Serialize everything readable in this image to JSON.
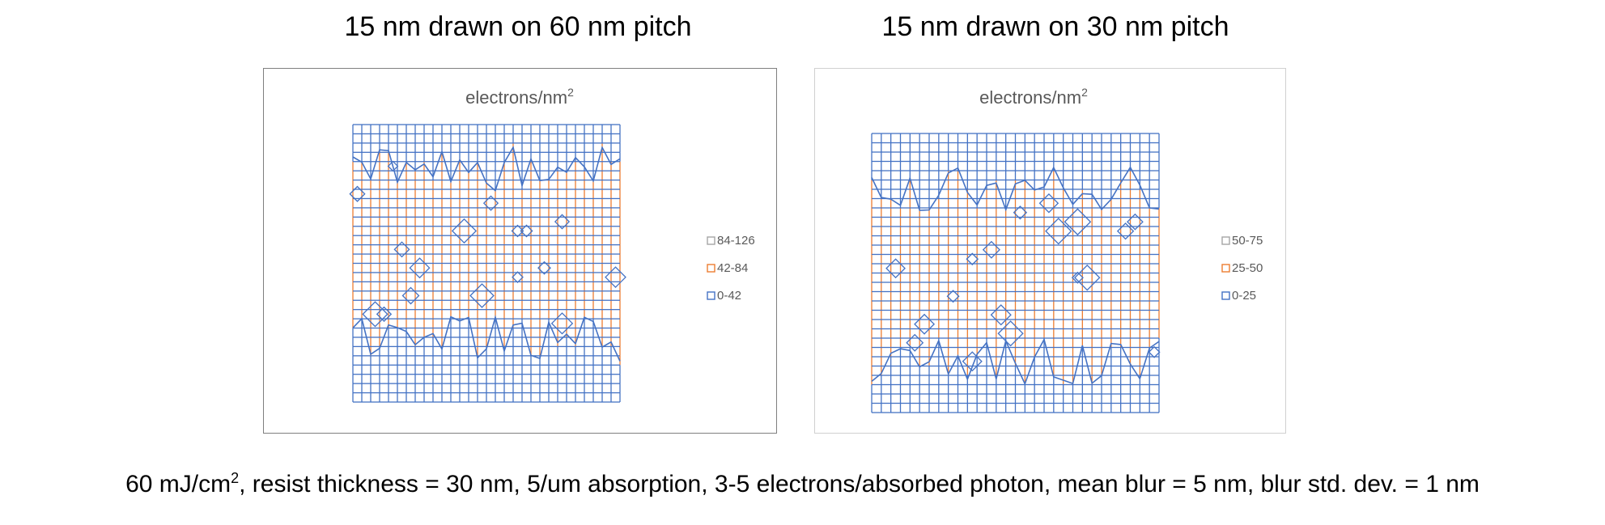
{
  "headings": {
    "left": "15 nm drawn on 60 nm pitch",
    "right": "15 nm drawn on 30 nm pitch"
  },
  "caption": {
    "pre": "60 mJ/cm",
    "sup": "2",
    "post": ", resist thickness = 30 nm, 5/um absorption, 3-5 electrons/absorbed photon, mean blur = 5 nm, blur std. dev. = 1 nm"
  },
  "colors": {
    "low": "#4472c4",
    "mid": "#ed7d31",
    "high": "#a5a5a5",
    "title": "#595959"
  },
  "chart_data": [
    {
      "type": "heatmap",
      "subtype": "contour-surface",
      "title": "electrons/nm",
      "title_sup": "2",
      "legend_position": "right",
      "bands": [
        {
          "label": "84-126",
          "range": [
            84,
            126
          ],
          "color": "#a5a5a5"
        },
        {
          "label": "42-84",
          "range": [
            42,
            84
          ],
          "color": "#ed7d31"
        },
        {
          "label": "0-42",
          "range": [
            0,
            42
          ],
          "color": "#4472c4"
        }
      ],
      "grid_cells": 30,
      "mid_band_extent": [
        0.16,
        0.77
      ],
      "seed": 11
    },
    {
      "type": "heatmap",
      "subtype": "contour-surface",
      "title": "electrons/nm",
      "title_sup": "2",
      "legend_position": "right",
      "bands": [
        {
          "label": "50-75",
          "range": [
            50,
            75
          ],
          "color": "#a5a5a5"
        },
        {
          "label": "25-50",
          "range": [
            25,
            50
          ],
          "color": "#ed7d31"
        },
        {
          "label": "0-25",
          "range": [
            0,
            25
          ],
          "color": "#4472c4"
        }
      ],
      "grid_cells": 30,
      "mid_band_extent": [
        0.2,
        0.82
      ],
      "seed": 29
    }
  ]
}
